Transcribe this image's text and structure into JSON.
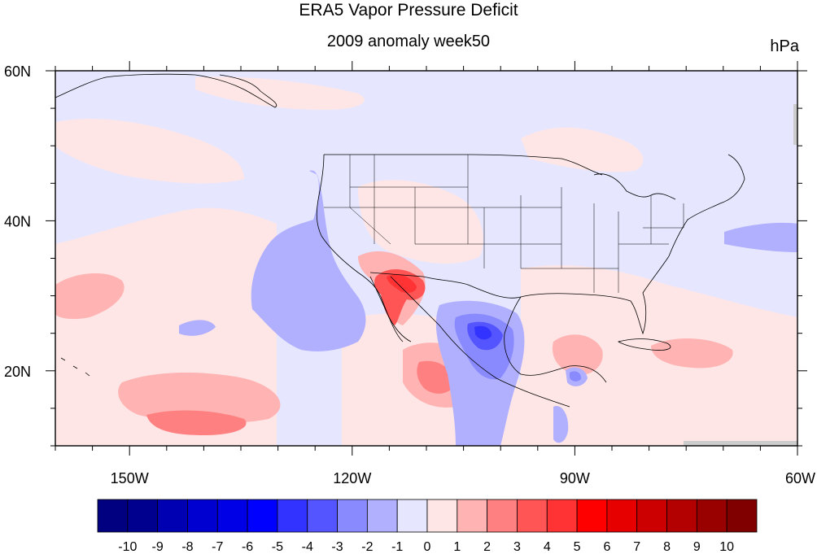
{
  "title": "ERA5 Vapor Pressure Deficit",
  "subtitle": "2009 anomaly week50",
  "units": "hPa",
  "map": {
    "projection": "cylindrical equidistant",
    "lon_range": [
      -160,
      -60
    ],
    "lat_range": [
      10,
      60
    ],
    "boundaries": [
      "coastlines",
      "US state borders"
    ],
    "lon_ticks": [
      {
        "value": -150,
        "label": "150W"
      },
      {
        "value": -120,
        "label": "120W"
      },
      {
        "value": -90,
        "label": "90W"
      },
      {
        "value": -60,
        "label": "60W"
      }
    ],
    "lat_ticks": [
      {
        "value": 60,
        "label": "60N"
      },
      {
        "value": 40,
        "label": "40N"
      },
      {
        "value": 20,
        "label": "20N"
      }
    ]
  },
  "colorbar": {
    "colors": [
      "#000080",
      "#00008f",
      "#0000b3",
      "#0000d1",
      "#0000e6",
      "#0000ff",
      "#3333ff",
      "#5555ff",
      "#8a8aff",
      "#b0b0ff",
      "#e6e6ff",
      "#ffe6e6",
      "#ffb3b3",
      "#ff8080",
      "#ff5555",
      "#ff3333",
      "#ff0000",
      "#e60000",
      "#cc0000",
      "#b30000",
      "#990000",
      "#800000"
    ],
    "labels": [
      "-10",
      "-9",
      "-8",
      "-7",
      "-6",
      "-5",
      "-4",
      "-3",
      "-2",
      "-1",
      "0",
      "1",
      "2",
      "3",
      "4",
      "5",
      "6",
      "7",
      "8",
      "9",
      "10"
    ]
  }
}
